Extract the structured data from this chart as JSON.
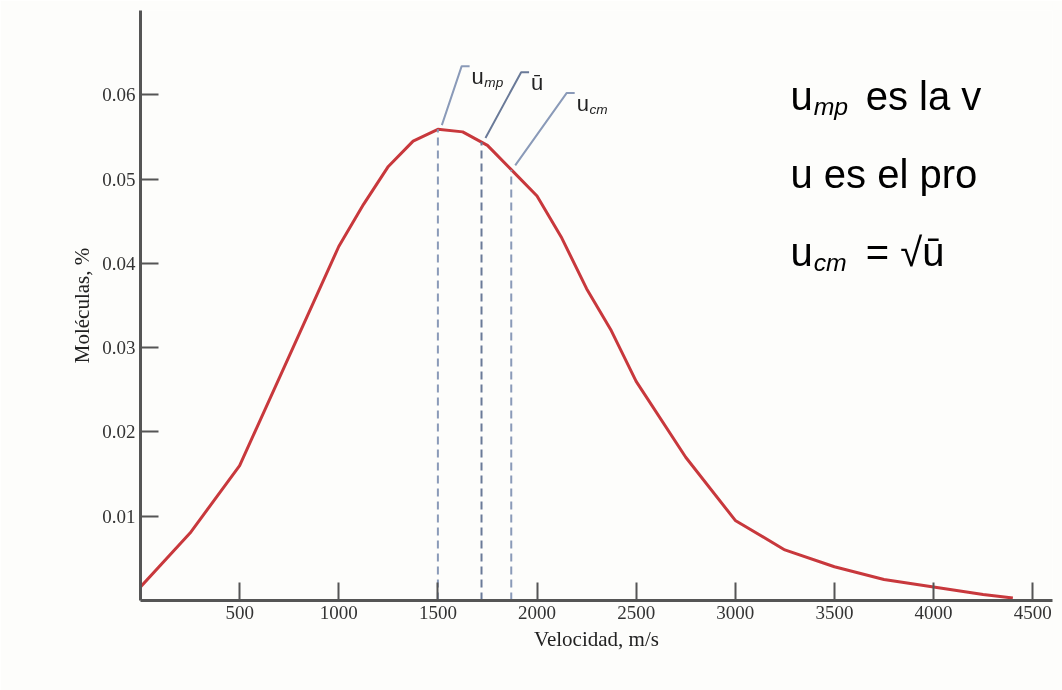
{
  "chart_data": {
    "type": "line",
    "xlabel": "Velocidad, m/s",
    "ylabel": "Moléculas, %",
    "x": [
      0,
      250,
      500,
      750,
      1000,
      1125,
      1250,
      1375,
      1500,
      1625,
      1750,
      1875,
      2000,
      2125,
      2250,
      2375,
      2500,
      2750,
      3000,
      3250,
      3500,
      3750,
      4000,
      4250,
      4400
    ],
    "series": [
      {
        "color": "#c8383c",
        "values": [
          0.0016,
          0.008,
          0.016,
          0.029,
          0.042,
          0.047,
          0.0515,
          0.0545,
          0.0559,
          0.0556,
          0.054,
          0.051,
          0.048,
          0.043,
          0.037,
          0.032,
          0.026,
          0.017,
          0.0095,
          0.006,
          0.004,
          0.0025,
          0.0016,
          0.0007,
          0.0003
        ]
      }
    ],
    "xlim": [
      0,
      4600
    ],
    "ylim": [
      0,
      0.07
    ],
    "xticks": [
      500,
      1000,
      1500,
      2000,
      2500,
      3000,
      3500,
      4000,
      4500
    ],
    "yticks": [
      0.01,
      0.02,
      0.03,
      0.04,
      0.05,
      0.06
    ],
    "ref_lines": [
      {
        "axis": "x",
        "value": 1500,
        "label": "u$_{mp}$",
        "color": "#8a9ab8",
        "line_style": "dashed"
      },
      {
        "axis": "x",
        "value": 1720,
        "label": "ū",
        "color": "#6a7a98",
        "line_style": "dashed"
      },
      {
        "axis": "x",
        "value": 1870,
        "label": "u$_{cm}$",
        "color": "#8a9ab8",
        "line_style": "dashed"
      }
    ],
    "annotations": [
      "u$_{mp}$  es la v",
      "u es el pro",
      "u$_{cm}$  = √ū"
    ],
    "grid": false,
    "marker": "none",
    "line_style": "solid"
  }
}
